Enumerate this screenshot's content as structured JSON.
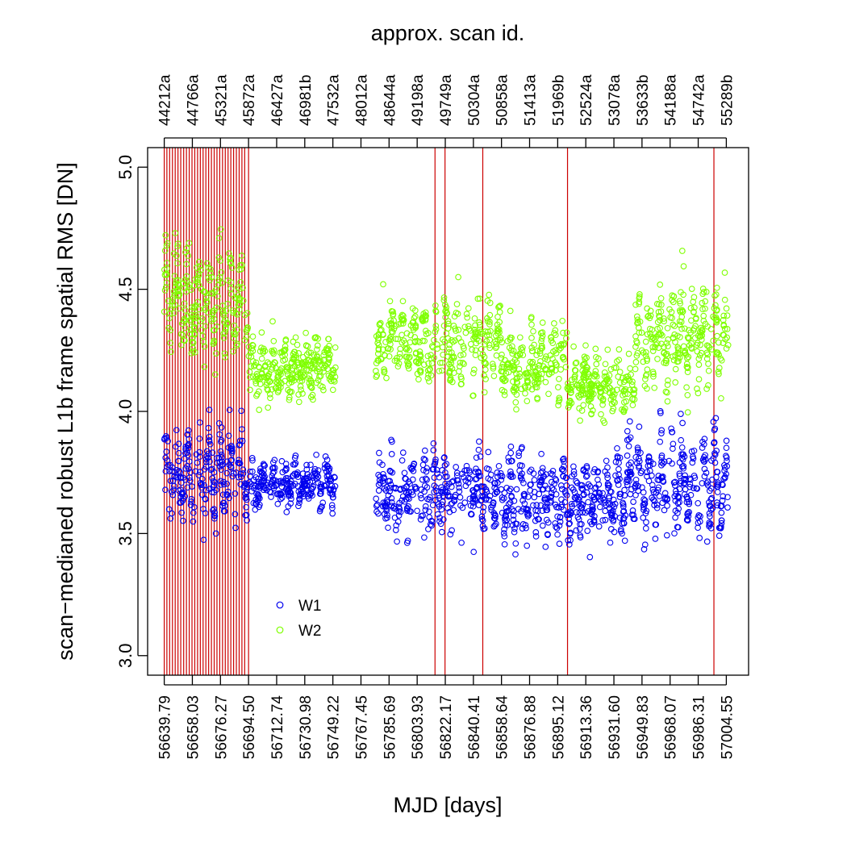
{
  "chart_data": {
    "type": "scatter",
    "title": "",
    "xlabel": "MJD [days]",
    "ylabel": "scan−medianed robust L1b frame spatial RMS [DN]",
    "top_axis_label": "approx. scan id.",
    "xlim": [
      56629.0,
      57019.0
    ],
    "ylim": [
      2.92,
      5.08
    ],
    "x_ticks": [
      "56639.79",
      "56658.03",
      "56676.27",
      "56694.50",
      "56712.74",
      "56730.98",
      "56749.22",
      "56767.45",
      "56785.69",
      "56803.93",
      "56822.17",
      "56840.41",
      "56858.64",
      "56876.88",
      "56895.12",
      "56913.36",
      "56931.60",
      "56949.83",
      "56968.07",
      "56986.31",
      "57004.55"
    ],
    "top_ticks": [
      "44212a",
      "44766a",
      "45321a",
      "45872a",
      "46427a",
      "46981b",
      "47532a",
      "48012a",
      "48644a",
      "49198a",
      "49749a",
      "50304a",
      "50858a",
      "51413a",
      "51969b",
      "52524a",
      "53078a",
      "53633b",
      "54188a",
      "54742a",
      "55289b"
    ],
    "y_ticks": [
      "3.0",
      "3.5",
      "4.0",
      "4.5",
      "5.0"
    ],
    "vertical_lines_mjd": [
      56639.79,
      56641.5,
      56643.3,
      56645.1,
      56646.9,
      56648.7,
      56650.5,
      56652.4,
      56654.2,
      56656.0,
      56657.8,
      56659.6,
      56661.4,
      56663.2,
      56665.0,
      56666.8,
      56668.6,
      56670.4,
      56672.2,
      56674.0,
      56675.8,
      56677.6,
      56679.4,
      56681.2,
      56683.0,
      56684.8,
      56686.6,
      56688.4,
      56690.2,
      56692.0,
      56694.5,
      56815.5,
      56822.0,
      56846.5,
      56901.5,
      56996.5
    ],
    "series": [
      {
        "name": "W1",
        "color": "#0000ee",
        "segments": [
          {
            "start": 56639.8,
            "end": 56694.5,
            "base": 3.74,
            "amp": 0.1,
            "noise": 0.12,
            "count": 230
          },
          {
            "start": 56694.5,
            "end": 56751.0,
            "base": 3.7,
            "amp": 0.04,
            "noise": 0.06,
            "count": 260
          },
          {
            "start": 56777.0,
            "end": 56858.0,
            "base": 3.67,
            "amp": 0.08,
            "noise": 0.11,
            "count": 330
          },
          {
            "start": 56858.0,
            "end": 56902.0,
            "base": 3.64,
            "amp": 0.1,
            "noise": 0.11,
            "count": 200
          },
          {
            "start": 56902.0,
            "end": 56940.0,
            "base": 3.64,
            "amp": 0.08,
            "noise": 0.1,
            "count": 180
          },
          {
            "start": 56940.0,
            "end": 57006.0,
            "base": 3.7,
            "amp": 0.13,
            "noise": 0.11,
            "count": 300
          }
        ]
      },
      {
        "name": "W2",
        "color": "#7fff00",
        "segments": [
          {
            "start": 56639.8,
            "end": 56694.5,
            "base": 4.45,
            "amp": 0.14,
            "noise": 0.14,
            "count": 240
          },
          {
            "start": 56694.5,
            "end": 56751.0,
            "base": 4.18,
            "amp": 0.06,
            "noise": 0.08,
            "count": 280
          },
          {
            "start": 56777.0,
            "end": 56858.0,
            "base": 4.28,
            "amp": 0.09,
            "noise": 0.1,
            "count": 340
          },
          {
            "start": 56858.0,
            "end": 56902.0,
            "base": 4.2,
            "amp": 0.08,
            "noise": 0.1,
            "count": 200
          },
          {
            "start": 56902.0,
            "end": 56945.0,
            "base": 4.11,
            "amp": 0.06,
            "noise": 0.08,
            "count": 200
          },
          {
            "start": 56945.0,
            "end": 57006.0,
            "base": 4.3,
            "amp": 0.12,
            "noise": 0.12,
            "count": 280
          }
        ]
      }
    ],
    "legend": {
      "position": "bottom-left",
      "entries": [
        "W1",
        "W2"
      ]
    }
  }
}
